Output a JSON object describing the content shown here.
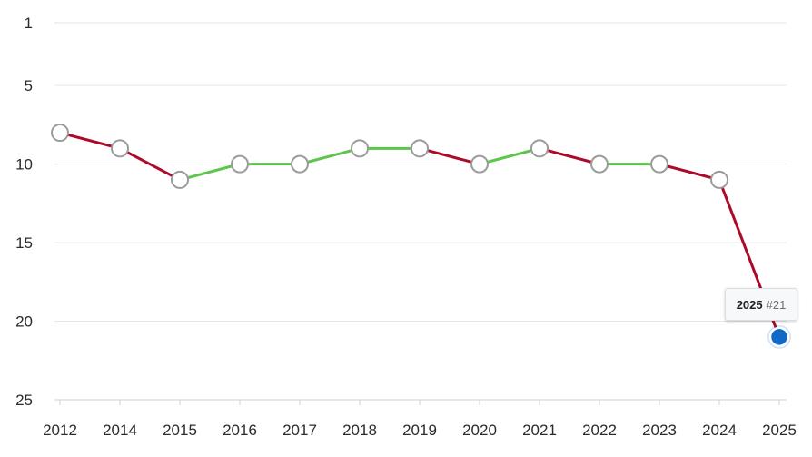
{
  "chart_data": {
    "type": "line",
    "title": "",
    "xlabel": "",
    "ylabel": "",
    "y_axis_inverted": true,
    "ylim": [
      1,
      25
    ],
    "y_ticks": [
      "1",
      "5",
      "10",
      "15",
      "20",
      "25"
    ],
    "y_tick_values": [
      1,
      5,
      10,
      15,
      20,
      25
    ],
    "categories": [
      "2012",
      "2014",
      "2015",
      "2016",
      "2017",
      "2018",
      "2019",
      "2020",
      "2021",
      "2022",
      "2023",
      "2024",
      "2025"
    ],
    "series": [
      {
        "values": [
          8,
          9,
          11,
          10,
          10,
          9,
          9,
          10,
          9,
          10,
          10,
          11,
          21
        ]
      }
    ],
    "grid": true,
    "segment_colors": {
      "rank_improved_or_same": "#5cc64a",
      "rank_declined": "#ad0a2a"
    },
    "highlighted_point": {
      "category": "2025",
      "year": "2025",
      "rank_label": "#21",
      "color": "#1068c9"
    }
  }
}
